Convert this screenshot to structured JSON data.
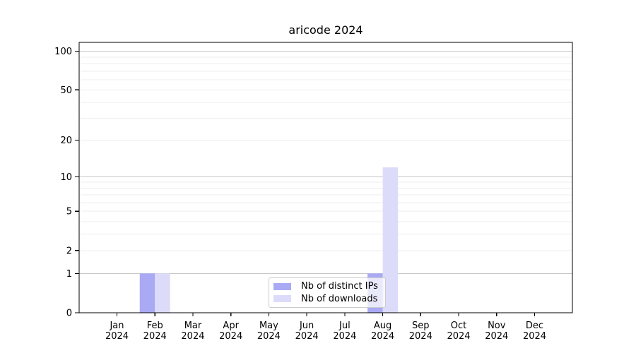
{
  "chart_data": {
    "type": "bar",
    "title": "aricode 2024",
    "categories": [
      "Jan",
      "Feb",
      "Mar",
      "Apr",
      "May",
      "Jun",
      "Jul",
      "Aug",
      "Sep",
      "Oct",
      "Nov",
      "Dec"
    ],
    "year_label": "2024",
    "series": [
      {
        "name": "Nb of distinct IPs",
        "color": "#a9a9f4",
        "values": [
          0,
          1,
          0,
          0,
          0,
          0,
          0,
          1,
          0,
          0,
          0,
          0
        ]
      },
      {
        "name": "Nb of downloads",
        "color": "#dcdcfa",
        "values": [
          0,
          1,
          0,
          0,
          0,
          0,
          0,
          12,
          0,
          0,
          0,
          0
        ]
      }
    ],
    "xlabel": "",
    "ylabel": "",
    "y_scale": "log1p",
    "ylim": [
      0,
      117
    ],
    "y_ticks": [
      0,
      1,
      2,
      5,
      10,
      20,
      50,
      100
    ],
    "minor_gridlines": [
      2,
      3,
      4,
      5,
      6,
      7,
      8,
      9,
      20,
      30,
      40,
      50,
      60,
      70,
      80,
      90
    ],
    "major_gridlines": [
      1,
      10,
      100
    ],
    "grid": "horizontal",
    "legend_position": "lower-center-inside",
    "colors": {
      "axis": "#000000",
      "text": "#000000",
      "minor_grid": "#ececec",
      "major_grid": "#c6c6c6",
      "legend_border": "#cccccc",
      "background": "#ffffff"
    }
  }
}
